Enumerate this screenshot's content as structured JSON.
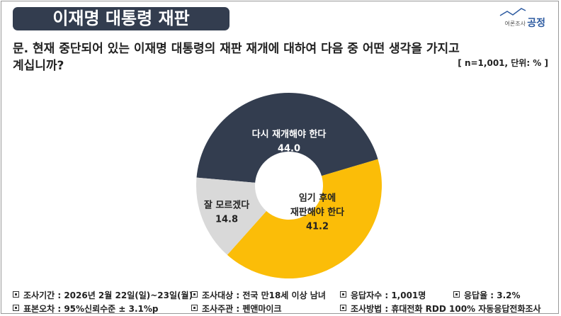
{
  "header": {
    "title": "이재명 대통령 재판",
    "logo_small": "여론조사",
    "logo_big": "공정",
    "question": [
      "문. 현재 중단되어 있는 이재명 대통령의 재판 재개에 대하여 다음 중 어떤 생각을 가지고",
      "계십니까?"
    ],
    "note": "[ n=1,001, 단위: % ]"
  },
  "chart_data": {
    "type": "donut",
    "categories": [
      [
        "다시 재개해야 한다"
      ],
      [
        "임기 후에",
        "재판해야 한다"
      ],
      [
        "잘 모르겠다"
      ]
    ],
    "values": [
      44.0,
      41.2,
      14.8
    ],
    "value_labels": [
      "44.0",
      "41.2",
      "14.8"
    ],
    "colors": [
      "#333d4f",
      "#fbbd08",
      "#d9d9d9"
    ]
  },
  "footer": [
    [
      "조사기간 : 2026년 2월 22일(일)~23일(월)",
      "조사대상 : 전국 만18세 이상 남녀",
      "응답자수 : 1,001명",
      "응답율 : 3.2%"
    ],
    [
      "표본오차 : 95%신뢰수준 ± 3.1%p",
      "조사주관 : 펜앤마이크",
      "조사방법 : 휴대전화 RDD 100% 자동응답전화조사"
    ]
  ]
}
